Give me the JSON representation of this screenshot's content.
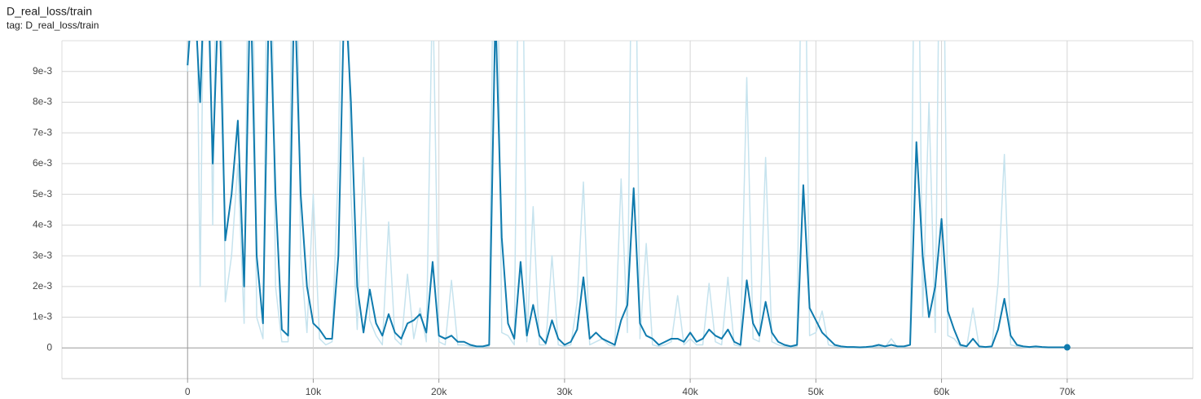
{
  "chart_data": {
    "type": "line",
    "title": "D_real_loss/train",
    "subtitle": "tag: D_real_loss/train",
    "x": [
      0,
      500,
      1000,
      1500,
      2000,
      2500,
      3000,
      3500,
      4000,
      4500,
      5000,
      5500,
      6000,
      6500,
      7000,
      7500,
      8000,
      8500,
      9000,
      9500,
      10000,
      10500,
      11000,
      11500,
      12000,
      12500,
      13000,
      13500,
      14000,
      14500,
      15000,
      15500,
      16000,
      16500,
      17000,
      17500,
      18000,
      18500,
      19000,
      19500,
      20000,
      20500,
      21000,
      21500,
      22000,
      22500,
      23000,
      23500,
      24000,
      24500,
      25000,
      25500,
      26000,
      26500,
      27000,
      27500,
      28000,
      28500,
      29000,
      29500,
      30000,
      30500,
      31000,
      31500,
      32000,
      32500,
      33000,
      33500,
      34000,
      34500,
      35000,
      35500,
      36000,
      36500,
      37000,
      37500,
      38000,
      38500,
      39000,
      39500,
      40000,
      40500,
      41000,
      41500,
      42000,
      42500,
      43000,
      43500,
      44000,
      44500,
      45000,
      45500,
      46000,
      46500,
      47000,
      47500,
      48000,
      48500,
      49000,
      49500,
      50000,
      50500,
      51000,
      51500,
      52000,
      52500,
      53000,
      53500,
      54000,
      54500,
      55000,
      55500,
      56000,
      56500,
      57000,
      57500,
      58000,
      58500,
      59000,
      59500,
      60000,
      60500,
      61000,
      61500,
      62000,
      62500,
      63000,
      63500,
      64000,
      64500,
      65000,
      65500,
      66000,
      66500,
      67000,
      67500,
      68000,
      68500,
      69000,
      69500,
      70000
    ],
    "series": [
      {
        "color": "#c6e3ee",
        "values": [
          0.009,
          0.02,
          0.002,
          0.02,
          0.004,
          0.02,
          0.0015,
          0.003,
          0.006,
          0.0008,
          0.02,
          0.001,
          0.0003,
          0.02,
          0.002,
          0.0002,
          0.0002,
          0.02,
          0.003,
          0.0005,
          0.005,
          0.0003,
          0.0001,
          0.0002,
          0.006,
          0.02,
          0.005,
          0.0006,
          0.0062,
          0.0009,
          0.0004,
          0.0001,
          0.0041,
          0.0003,
          0.0001,
          0.0024,
          0.0003,
          0.0013,
          0.0002,
          0.012,
          0.0002,
          0.0001,
          0.0022,
          0.0001,
          0.0001,
          5e-05,
          2e-05,
          2e-05,
          5e-05,
          0.02,
          0.0005,
          0.0004,
          0.0001,
          0.02,
          0.0002,
          0.0046,
          0.0001,
          0.0001,
          0.003,
          0.0001,
          5e-05,
          0.0001,
          0.0015,
          0.0054,
          0.0001,
          0.0002,
          0.0003,
          0.0001,
          5e-05,
          0.0055,
          0.0005,
          0.02,
          0.0003,
          0.0034,
          0.0001,
          5e-05,
          0.0001,
          0.0002,
          0.0017,
          0.0001,
          0.0003,
          0.0001,
          0.0001,
          0.0021,
          0.0002,
          0.0001,
          0.0023,
          0.0001,
          5e-05,
          0.0088,
          0.0003,
          0.0002,
          0.0062,
          0.0002,
          0.0001,
          5e-05,
          2e-05,
          5e-05,
          0.02,
          0.0004,
          0.0005,
          0.0012,
          0.0001,
          5e-05,
          2e-05,
          1e-05,
          1e-05,
          1e-05,
          1e-05,
          2e-05,
          5e-05,
          2e-05,
          0.0003,
          2e-05,
          2e-05,
          0.0001,
          0.02,
          0.001,
          0.008,
          0.0005,
          0.02,
          0.0004,
          0.0003,
          5e-05,
          2e-05,
          0.0013,
          2e-05,
          1e-05,
          2e-05,
          0.0021,
          0.0063,
          0.0001,
          5e-05,
          2e-05,
          1e-05,
          2e-05,
          1e-05,
          1e-05,
          1e-05,
          1e-05,
          1e-05
        ]
      },
      {
        "color": "#0f7bae",
        "values": [
          0.0092,
          0.012,
          0.008,
          0.014,
          0.006,
          0.012,
          0.0035,
          0.005,
          0.0074,
          0.002,
          0.012,
          0.003,
          0.0008,
          0.012,
          0.005,
          0.0006,
          0.0004,
          0.012,
          0.005,
          0.002,
          0.0008,
          0.0006,
          0.0003,
          0.0003,
          0.003,
          0.012,
          0.008,
          0.002,
          0.0005,
          0.0019,
          0.0008,
          0.0004,
          0.0011,
          0.0005,
          0.0003,
          0.0008,
          0.0009,
          0.0011,
          0.0005,
          0.0028,
          0.0004,
          0.0003,
          0.0004,
          0.0002,
          0.0002,
          0.0001,
          5e-05,
          5e-05,
          0.0001,
          0.011,
          0.0036,
          0.0008,
          0.0003,
          0.0028,
          0.0004,
          0.0014,
          0.0004,
          0.00015,
          0.0009,
          0.0003,
          0.0001,
          0.0002,
          0.0006,
          0.0023,
          0.0003,
          0.0005,
          0.0003,
          0.0002,
          0.0001,
          0.0009,
          0.0014,
          0.0052,
          0.0008,
          0.0004,
          0.0003,
          0.0001,
          0.0002,
          0.0003,
          0.0003,
          0.0002,
          0.0005,
          0.0002,
          0.0003,
          0.0006,
          0.0004,
          0.0003,
          0.0006,
          0.0002,
          0.0001,
          0.0022,
          0.0008,
          0.0004,
          0.0015,
          0.0005,
          0.0002,
          0.0001,
          5e-05,
          0.0001,
          0.0053,
          0.0013,
          0.0009,
          0.0005,
          0.0003,
          0.0001,
          5e-05,
          3e-05,
          3e-05,
          2e-05,
          3e-05,
          5e-05,
          0.0001,
          5e-05,
          0.0001,
          5e-05,
          5e-05,
          0.0001,
          0.0067,
          0.003,
          0.001,
          0.002,
          0.0042,
          0.0012,
          0.0006,
          0.0001,
          5e-05,
          0.0003,
          5e-05,
          3e-05,
          5e-05,
          0.0006,
          0.0016,
          0.0004,
          0.0001,
          5e-05,
          3e-05,
          5e-05,
          3e-05,
          2e-05,
          2e-05,
          2e-05,
          2e-05
        ]
      }
    ],
    "xlim": [
      -10000,
      80000
    ],
    "ylim": [
      -0.001,
      0.01
    ],
    "xticks": [
      0,
      {
        "value": 10000,
        "label": "10k"
      },
      {
        "value": 20000,
        "label": "20k"
      },
      {
        "value": 30000,
        "label": "30k"
      },
      {
        "value": 40000,
        "label": "40k"
      },
      {
        "value": 50000,
        "label": "50k"
      },
      {
        "value": 60000,
        "label": "60k"
      },
      {
        "value": 70000,
        "label": "70k"
      }
    ],
    "yticks": [
      0,
      {
        "value": 0.001,
        "label": "1e-3"
      },
      {
        "value": 0.002,
        "label": "2e-3"
      },
      {
        "value": 0.003,
        "label": "3e-3"
      },
      {
        "value": 0.004,
        "label": "4e-3"
      },
      {
        "value": 0.005,
        "label": "5e-3"
      },
      {
        "value": 0.006,
        "label": "6e-3"
      },
      {
        "value": 0.007,
        "label": "7e-3"
      },
      {
        "value": 0.008,
        "label": "8e-3"
      },
      {
        "value": 0.009,
        "label": "9e-3"
      }
    ],
    "grid": true
  }
}
